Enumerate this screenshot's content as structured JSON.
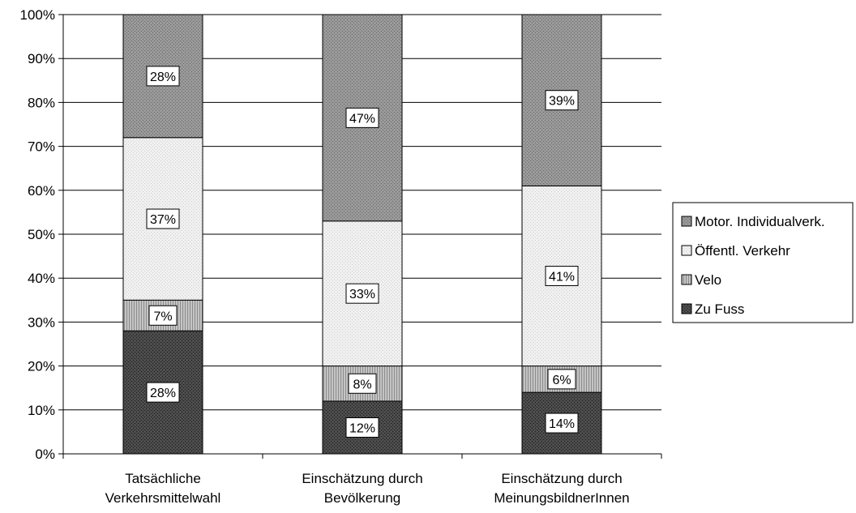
{
  "chart_data": {
    "type": "bar",
    "stacked": true,
    "title": "",
    "xlabel": "",
    "ylabel": "",
    "ylim": [
      0,
      100
    ],
    "grid": true,
    "legend_position": "right",
    "categories": [
      [
        "Tatsächliche",
        "Verkehrsmittelwahl"
      ],
      [
        "Einschätzung durch",
        "Bevölkerung"
      ],
      [
        "Einschätzung durch",
        "MeinungsbildnerInnen"
      ]
    ],
    "y_ticks": [
      "0%",
      "10%",
      "20%",
      "30%",
      "40%",
      "50%",
      "60%",
      "70%",
      "80%",
      "90%",
      "100%"
    ],
    "y_tick_values": [
      0,
      10,
      20,
      30,
      40,
      50,
      60,
      70,
      80,
      90,
      100
    ],
    "series": [
      {
        "name": "Zu Fuss",
        "values": [
          28,
          12,
          14
        ],
        "labels": [
          "28%",
          "12%",
          "14%"
        ],
        "color": "#3c3c3c",
        "pattern": "dark-dots"
      },
      {
        "name": "Velo",
        "values": [
          7,
          8,
          6
        ],
        "labels": [
          "7%",
          "8%",
          "6%"
        ],
        "color": "#a8a8a8",
        "pattern": "vertical-lines"
      },
      {
        "name": "Öffentl. Verkehr",
        "values": [
          37,
          33,
          41
        ],
        "labels": [
          "37%",
          "33%",
          "41%"
        ],
        "color": "#e6e6e6",
        "pattern": "light-dots"
      },
      {
        "name": "Motor. Individualverk.",
        "values": [
          28,
          47,
          39
        ],
        "labels": [
          "28%",
          "47%",
          "39%"
        ],
        "color": "#8a8a8a",
        "pattern": "mid-dots"
      }
    ],
    "legend_order": [
      "Motor. Individualverk.",
      "Öffentl. Verkehr",
      "Velo",
      "Zu Fuss"
    ]
  }
}
